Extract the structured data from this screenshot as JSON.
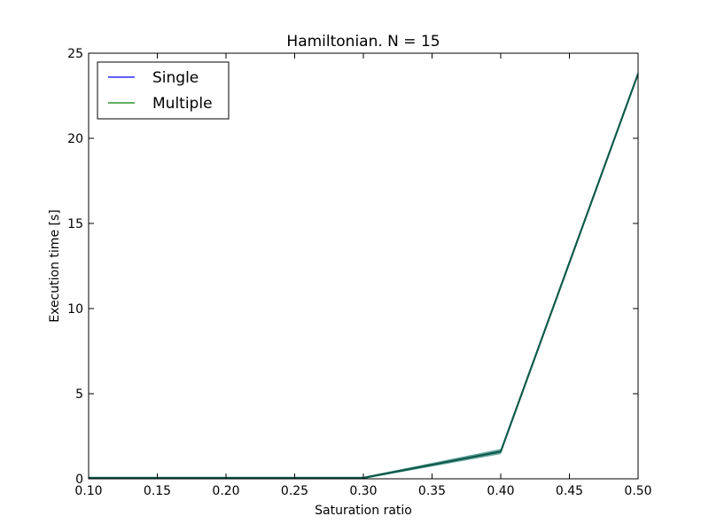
{
  "chart_data": {
    "type": "line",
    "title": "Hamiltonian. N = 15",
    "xlabel": "Saturation ratio",
    "ylabel": "Execution time [s]",
    "xlim": [
      0.1,
      0.5
    ],
    "ylim": [
      0,
      25
    ],
    "xticks": [
      0.1,
      0.15,
      0.2,
      0.25,
      0.3,
      0.35,
      0.4,
      0.45,
      0.5
    ],
    "xtick_labels": [
      "0.10",
      "0.15",
      "0.20",
      "0.25",
      "0.30",
      "0.35",
      "0.40",
      "0.45",
      "0.50"
    ],
    "yticks": [
      0,
      5,
      10,
      15,
      20,
      25
    ],
    "ytick_labels": [
      "0",
      "5",
      "10",
      "15",
      "20",
      "25"
    ],
    "grid": false,
    "legend_position": "top-left",
    "band_color": "#5a9e98",
    "series": [
      {
        "name": "Single",
        "color": "#0000ff",
        "x": [
          0.1,
          0.2,
          0.3,
          0.4,
          0.5
        ],
        "y": [
          0.05,
          0.05,
          0.05,
          1.6,
          23.8
        ],
        "band_low": [
          0.0,
          0.0,
          0.0,
          1.45,
          23.7
        ],
        "band_high": [
          0.12,
          0.12,
          0.12,
          1.75,
          23.9
        ]
      },
      {
        "name": "Multiple",
        "color": "#008000",
        "x": [
          0.1,
          0.2,
          0.3,
          0.4,
          0.5
        ],
        "y": [
          0.05,
          0.05,
          0.05,
          1.6,
          23.8
        ],
        "band_low": [
          0.0,
          0.0,
          0.0,
          1.45,
          23.7
        ],
        "band_high": [
          0.12,
          0.12,
          0.12,
          1.75,
          23.9
        ]
      }
    ],
    "overlay_line_color": "#0d5a4a"
  }
}
